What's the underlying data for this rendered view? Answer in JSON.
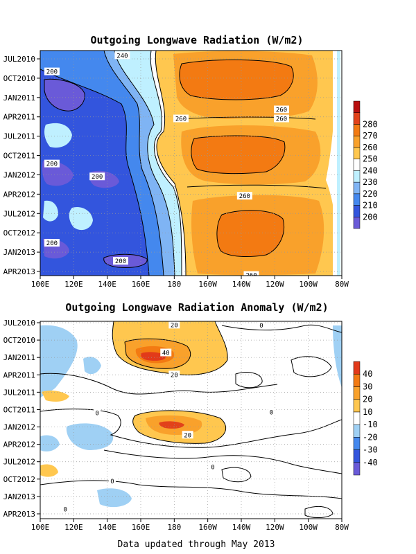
{
  "footer": "Data updated through May 2013",
  "chart_data": [
    {
      "type": "heatmap",
      "title": "Outgoing Longwave Radiation (W/m2)",
      "x_tick_labels": [
        "100E",
        "120E",
        "140E",
        "160E",
        "180",
        "160W",
        "140W",
        "120W",
        "100W",
        "80W"
      ],
      "x_lon": [
        100,
        120,
        140,
        160,
        180,
        200,
        220,
        240,
        260,
        280
      ],
      "y_tick_labels": [
        "JUL2010",
        "OCT2010",
        "JAN2011",
        "APR2011",
        "JUL2011",
        "OCT2011",
        "JAN2012",
        "APR2012",
        "JUL2012",
        "OCT2012",
        "JAN2013",
        "APR2013"
      ],
      "y_month": [
        0,
        3,
        6,
        9,
        12,
        15,
        18,
        21,
        24,
        27,
        30,
        33
      ],
      "colorbar_levels": [
        "200",
        "210",
        "220",
        "230",
        "240",
        "250",
        "260",
        "270",
        "280"
      ],
      "colorbar_colors": [
        "#6a5ad8",
        "#3355dd",
        "#4488ee",
        "#7fb4f4",
        "#bff0ff",
        "#ffffff",
        "#ffc74f",
        "#f9a12b",
        "#f37a12",
        "#e2421a",
        "#b80f0f"
      ],
      "contour_labels": [
        {
          "text": "200",
          "lon": 107,
          "month": 2
        },
        {
          "text": "240",
          "lon": 149,
          "month": -0.5
        },
        {
          "text": "260",
          "lon": 184,
          "month": 9.3
        },
        {
          "text": "260",
          "lon": 244,
          "month": 7.9
        },
        {
          "text": "260",
          "lon": 244,
          "month": 9.3
        },
        {
          "text": "200",
          "lon": 107,
          "month": 16.3
        },
        {
          "text": "200",
          "lon": 134,
          "month": 18.3
        },
        {
          "text": "260",
          "lon": 222,
          "month": 21.3
        },
        {
          "text": "200",
          "lon": 107,
          "month": 28.6
        },
        {
          "text": "200",
          "lon": 148,
          "month": 31.4
        },
        {
          "text": "260",
          "lon": 226,
          "month": 33.6
        }
      ]
    },
    {
      "type": "heatmap",
      "title": "Outgoing Longwave Radiation Anomaly (W/m2)",
      "x_tick_labels": [
        "100E",
        "120E",
        "140E",
        "160E",
        "180",
        "160W",
        "140W",
        "120W",
        "100W",
        "80W"
      ],
      "x_lon": [
        100,
        120,
        140,
        160,
        180,
        200,
        220,
        240,
        260,
        280
      ],
      "y_tick_labels": [
        "JUL2010",
        "OCT2010",
        "JAN2011",
        "APR2011",
        "JUL2011",
        "OCT2011",
        "JAN2012",
        "APR2012",
        "JUL2012",
        "OCT2012",
        "JAN2013",
        "APR2013"
      ],
      "y_month": [
        0,
        3,
        6,
        9,
        12,
        15,
        18,
        21,
        24,
        27,
        30,
        33
      ],
      "colorbar_levels": [
        "-40",
        "-30",
        "-20",
        "-10",
        "10",
        "20",
        "30",
        "40"
      ],
      "colorbar_colors": [
        "#6a5ad8",
        "#3355dd",
        "#4488ee",
        "#9fd0f4",
        "#ffffff",
        "#ffc74f",
        "#f9a12b",
        "#f37a12",
        "#e23a1a"
      ],
      "contour_labels": [
        {
          "text": "20",
          "lon": 180,
          "month": 0.4
        },
        {
          "text": "40",
          "lon": 175,
          "month": 5.2
        },
        {
          "text": "20",
          "lon": 180,
          "month": 9.0
        },
        {
          "text": "0",
          "lon": 232,
          "month": 0.5
        },
        {
          "text": "0",
          "lon": 134,
          "month": 15.6
        },
        {
          "text": "0",
          "lon": 238,
          "month": 15.5
        },
        {
          "text": "20",
          "lon": 188,
          "month": 19.4
        },
        {
          "text": "0",
          "lon": 203,
          "month": 24.9
        },
        {
          "text": "0",
          "lon": 143,
          "month": 27.4
        },
        {
          "text": "0",
          "lon": 115,
          "month": 32.2
        }
      ]
    }
  ]
}
